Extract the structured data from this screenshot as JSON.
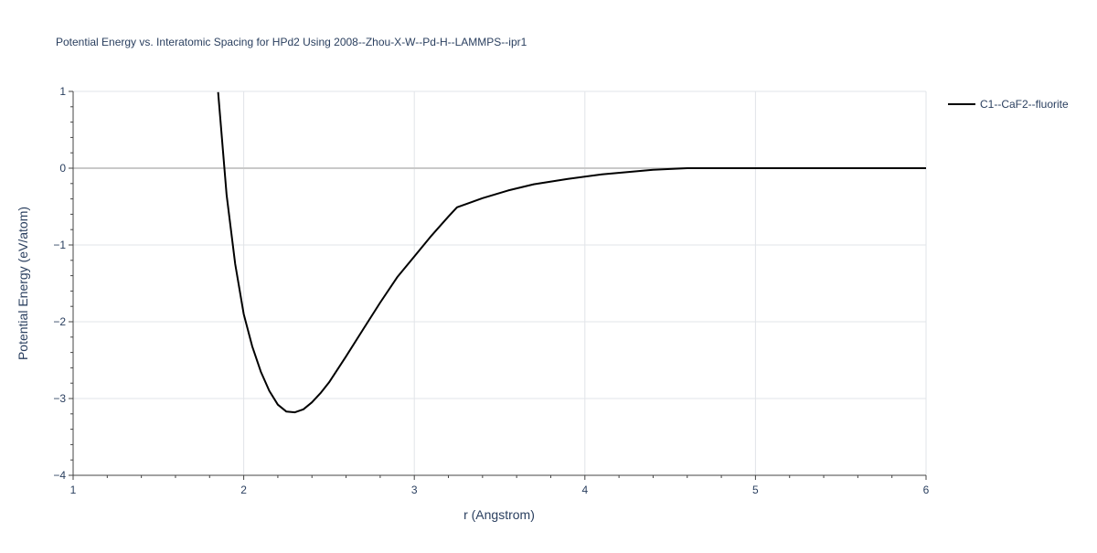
{
  "chart_data": {
    "type": "line",
    "title": "Potential Energy vs. Interatomic Spacing for HPd2 Using 2008--Zhou-X-W--Pd-H--LAMMPS--ipr1",
    "xlabel": "r (Angstrom)",
    "ylabel": "Potential Energy (eV/atom)",
    "xlim": [
      1,
      6
    ],
    "ylim": [
      -4,
      1
    ],
    "x_ticks": [
      1,
      2,
      3,
      4,
      5,
      6
    ],
    "y_ticks": [
      1,
      0,
      -1,
      -2,
      -3,
      -4
    ],
    "x_tick_labels": [
      "1",
      "2",
      "3",
      "4",
      "5",
      "6"
    ],
    "y_tick_labels": [
      "1",
      "0",
      "−1",
      "−2",
      "−3",
      "−4"
    ],
    "grid": true,
    "legend_position": "top-right",
    "series": [
      {
        "name": "C1--CaF2--fluorite",
        "color": "#000000",
        "x": [
          1.85,
          1.9,
          1.95,
          2.0,
          2.05,
          2.1,
          2.15,
          2.2,
          2.25,
          2.3,
          2.35,
          2.4,
          2.45,
          2.5,
          2.6,
          2.7,
          2.8,
          2.9,
          3.0,
          3.1,
          3.2,
          3.25,
          3.4,
          3.55,
          3.7,
          3.9,
          4.1,
          4.4,
          4.6,
          5.0,
          5.5,
          6.0
        ],
        "y": [
          0.99,
          -0.35,
          -1.25,
          -1.9,
          -2.32,
          -2.65,
          -2.9,
          -3.08,
          -3.17,
          -3.18,
          -3.14,
          -3.05,
          -2.93,
          -2.79,
          -2.45,
          -2.1,
          -1.75,
          -1.42,
          -1.15,
          -0.88,
          -0.63,
          -0.51,
          -0.39,
          -0.29,
          -0.21,
          -0.14,
          -0.08,
          -0.02,
          0.0,
          0.0,
          0.0,
          0.0
        ]
      }
    ]
  }
}
